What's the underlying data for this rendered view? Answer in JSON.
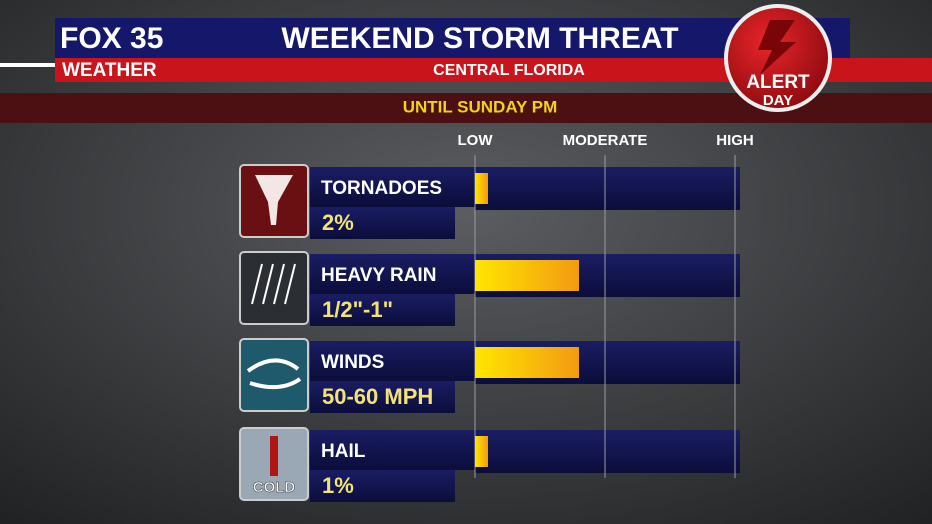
{
  "header": {
    "logo_top": "FOX 35",
    "logo_bottom": "WEATHER",
    "title": "WEEKEND STORM THREAT",
    "subtitle": "CENTRAL FLORIDA",
    "badge_top": "ALERT",
    "badge_bottom": "DAY"
  },
  "chart_data": {
    "type": "bar",
    "orientation": "horizontal",
    "title": "UNTIL SUNDAY PM",
    "categories": [
      "TORNADOES",
      "HEAVY RAIN",
      "WINDS",
      "HAIL"
    ],
    "values": [
      0.1,
      0.8,
      0.8,
      0.1
    ],
    "details": [
      "2%",
      "1/2\"-1\"",
      "50-60 MPH",
      "1%"
    ],
    "hail_icon_label": "COLD",
    "xlim": [
      0,
      2
    ],
    "xticks": [
      {
        "value": 0,
        "label": "LOW"
      },
      {
        "value": 1,
        "label": "MODERATE"
      },
      {
        "value": 2,
        "label": "HIGH"
      }
    ],
    "grid": true
  }
}
